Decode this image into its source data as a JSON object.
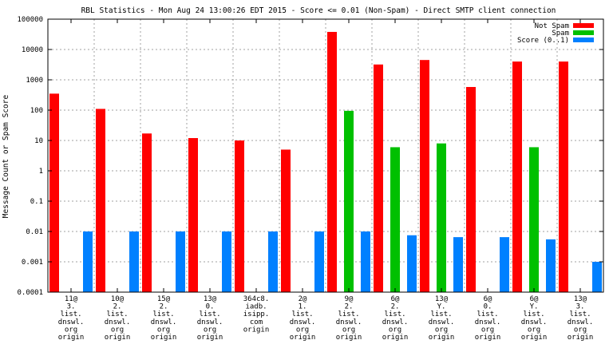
{
  "chart_data": {
    "type": "bar",
    "title": "RBL Statistics - Mon Aug 24 13:00:26 EDT 2015 - Score <= 0.01 (Non-Spam) - Direct SMTP client connection",
    "ylabel": "Message Count or Spam Score",
    "xlabel": "",
    "yscale": "log",
    "ylim": [
      0.0001,
      100000
    ],
    "ytick_labels": [
      "0.0001",
      "0.001",
      "0.01",
      "0.1",
      "1",
      "10",
      "100",
      "1000",
      "10000",
      "100000"
    ],
    "grid": true,
    "legend_position": "top-right",
    "categories": [
      [
        "11@",
        "3.",
        "list.",
        "dnswl.",
        "org",
        "origin"
      ],
      [
        "10@",
        "2.",
        "list.",
        "dnswl.",
        "org",
        "origin"
      ],
      [
        "15@",
        "2.",
        "list.",
        "dnswl.",
        "org",
        "origin"
      ],
      [
        "13@",
        "0.",
        "list.",
        "dnswl.",
        "org",
        "origin"
      ],
      [
        "364c8.",
        "iadb.",
        "isipp.",
        "com",
        "origin"
      ],
      [
        "2@",
        "1.",
        "list.",
        "dnswl.",
        "org",
        "origin"
      ],
      [
        "9@",
        "2.",
        "list.",
        "dnswl.",
        "org",
        "origin"
      ],
      [
        "6@",
        "2.",
        "list.",
        "dnswl.",
        "org",
        "origin"
      ],
      [
        "13@",
        "Y.",
        "list.",
        "dnswl.",
        "org",
        "origin"
      ],
      [
        "6@",
        "0.",
        "list.",
        "dnswl.",
        "org",
        "origin"
      ],
      [
        "6@",
        "Y.",
        "list.",
        "dnswl.",
        "org",
        "origin"
      ],
      [
        "13@",
        "3.",
        "list.",
        "dnswl.",
        "org",
        "origin"
      ]
    ],
    "series": [
      {
        "name": "Not Spam",
        "color": "#ff0000",
        "values": [
          350,
          110,
          17,
          12,
          10,
          5,
          38000,
          3200,
          4500,
          580,
          4000,
          4000
        ]
      },
      {
        "name": "Spam",
        "color": "#00c000",
        "values": [
          null,
          null,
          null,
          null,
          null,
          null,
          95,
          6,
          8,
          null,
          6,
          null
        ]
      },
      {
        "name": "Score (0..1)",
        "color": "#0080ff",
        "values": [
          0.01,
          0.01,
          0.01,
          0.01,
          0.01,
          0.01,
          0.01,
          0.0075,
          0.0065,
          0.0065,
          0.0055,
          0.001
        ]
      }
    ]
  }
}
